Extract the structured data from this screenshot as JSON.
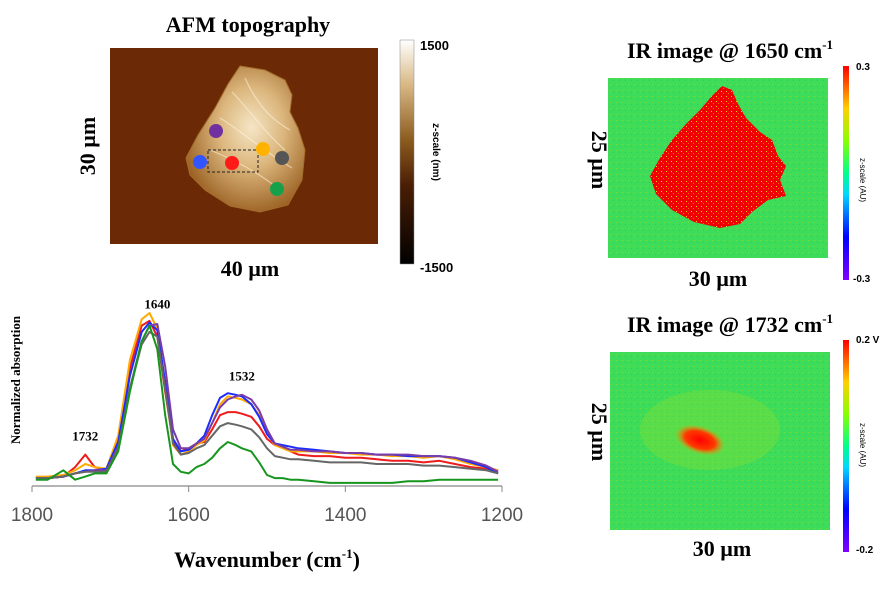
{
  "afm_panel": {
    "title": "AFM topography",
    "width_label": "40 µm",
    "height_label": "30 µm",
    "colorbar": {
      "max_label": "1500",
      "min_label": "-1500",
      "axis_label": "z-scale (nm)"
    },
    "colors": {
      "background": "#6b2a05",
      "flake": "#b8843e",
      "flake_light": "#f2e2c0"
    },
    "markers": [
      {
        "name": "purple",
        "color": "#7030a0"
      },
      {
        "name": "blue",
        "color": "#3355ff"
      },
      {
        "name": "red",
        "color": "#ff1a1a"
      },
      {
        "name": "orange",
        "color": "#ffb300"
      },
      {
        "name": "gray",
        "color": "#555555"
      },
      {
        "name": "green",
        "color": "#16a04a"
      }
    ]
  },
  "ir_panels": [
    {
      "title_prefix": "IR image @ 1650 cm",
      "title_sup": "-1",
      "width_label": "30 µm",
      "height_label": "25 µm",
      "colorbar": {
        "max_label": "0.3",
        "min_label": "-0.3",
        "axis_label": "z-scale (AU)"
      }
    },
    {
      "title_prefix": "IR image @ 1732 cm",
      "title_sup": "-1",
      "width_label": "30 µm",
      "height_label": "25 µm",
      "colorbar": {
        "max_label": "0.2 V",
        "min_label": "-0.2",
        "axis_label": "z-scale (AU)"
      }
    }
  ],
  "chart_data": {
    "type": "line",
    "title": "",
    "xlabel_main": "Wavenumber (cm",
    "xlabel_sup": "-1",
    "xlabel_close": ")",
    "ylabel": "Normalized  absorption",
    "xlim": [
      1800,
      1200
    ],
    "ylim": [
      0,
      1.1
    ],
    "xticks": [
      1800,
      1600,
      1400,
      1200
    ],
    "x": [
      1795,
      1780,
      1760,
      1745,
      1732,
      1720,
      1705,
      1690,
      1675,
      1660,
      1650,
      1640,
      1630,
      1620,
      1610,
      1600,
      1590,
      1580,
      1570,
      1560,
      1550,
      1540,
      1532,
      1520,
      1510,
      1500,
      1490,
      1480,
      1470,
      1460,
      1440,
      1420,
      1400,
      1380,
      1360,
      1340,
      1320,
      1300,
      1280,
      1260,
      1240,
      1220,
      1205
    ],
    "series": [
      {
        "name": "red",
        "color": "#ee1c1c",
        "values": [
          0.05,
          0.05,
          0.06,
          0.12,
          0.2,
          0.12,
          0.1,
          0.3,
          0.75,
          1.02,
          1.05,
          0.95,
          0.6,
          0.28,
          0.22,
          0.24,
          0.27,
          0.28,
          0.36,
          0.45,
          0.47,
          0.47,
          0.46,
          0.44,
          0.38,
          0.3,
          0.26,
          0.25,
          0.22,
          0.2,
          0.19,
          0.19,
          0.18,
          0.18,
          0.17,
          0.16,
          0.16,
          0.15,
          0.16,
          0.14,
          0.12,
          0.11,
          0.1
        ]
      },
      {
        "name": "orange",
        "color": "#ffaa00",
        "values": [
          0.06,
          0.06,
          0.07,
          0.1,
          0.14,
          0.12,
          0.11,
          0.32,
          0.8,
          1.06,
          1.1,
          1.0,
          0.63,
          0.26,
          0.2,
          0.22,
          0.26,
          0.29,
          0.4,
          0.52,
          0.57,
          0.56,
          0.55,
          0.52,
          0.45,
          0.34,
          0.26,
          0.24,
          0.22,
          0.22,
          0.22,
          0.21,
          0.21,
          0.2,
          0.2,
          0.19,
          0.19,
          0.18,
          0.19,
          0.17,
          0.14,
          0.12,
          0.1
        ]
      },
      {
        "name": "blue",
        "color": "#1a2cff",
        "values": [
          0.05,
          0.05,
          0.06,
          0.08,
          0.1,
          0.1,
          0.11,
          0.28,
          0.7,
          0.98,
          1.04,
          0.99,
          0.66,
          0.3,
          0.22,
          0.23,
          0.27,
          0.32,
          0.45,
          0.56,
          0.59,
          0.58,
          0.57,
          0.52,
          0.44,
          0.33,
          0.27,
          0.26,
          0.25,
          0.24,
          0.23,
          0.22,
          0.21,
          0.21,
          0.2,
          0.2,
          0.19,
          0.19,
          0.19,
          0.18,
          0.15,
          0.12,
          0.08
        ]
      },
      {
        "name": "purple",
        "color": "#7a3ca8",
        "values": [
          0.05,
          0.05,
          0.06,
          0.08,
          0.09,
          0.1,
          0.1,
          0.25,
          0.62,
          0.92,
          1.02,
          1.03,
          0.76,
          0.36,
          0.24,
          0.24,
          0.27,
          0.3,
          0.4,
          0.5,
          0.55,
          0.57,
          0.58,
          0.55,
          0.48,
          0.36,
          0.27,
          0.25,
          0.23,
          0.23,
          0.22,
          0.22,
          0.21,
          0.21,
          0.2,
          0.2,
          0.2,
          0.19,
          0.19,
          0.18,
          0.16,
          0.13,
          0.09
        ]
      },
      {
        "name": "gray",
        "color": "#666666",
        "values": [
          0.05,
          0.05,
          0.06,
          0.08,
          0.09,
          0.09,
          0.09,
          0.24,
          0.62,
          0.9,
          0.98,
          0.95,
          0.62,
          0.27,
          0.2,
          0.21,
          0.24,
          0.26,
          0.32,
          0.38,
          0.4,
          0.39,
          0.38,
          0.36,
          0.31,
          0.24,
          0.19,
          0.18,
          0.17,
          0.17,
          0.16,
          0.15,
          0.15,
          0.15,
          0.14,
          0.14,
          0.14,
          0.13,
          0.13,
          0.12,
          0.11,
          0.1,
          0.08
        ]
      },
      {
        "name": "green",
        "color": "#17961e",
        "values": [
          0.04,
          0.04,
          0.1,
          0.04,
          0.06,
          0.08,
          0.08,
          0.22,
          0.6,
          0.92,
          1.02,
          0.87,
          0.45,
          0.14,
          0.09,
          0.08,
          0.12,
          0.14,
          0.18,
          0.24,
          0.28,
          0.26,
          0.24,
          0.22,
          0.15,
          0.07,
          0.05,
          0.05,
          0.04,
          0.04,
          0.03,
          0.02,
          0.02,
          0.02,
          0.02,
          0.02,
          0.03,
          0.03,
          0.04,
          0.04,
          0.04,
          0.04,
          0.04
        ]
      }
    ],
    "annotations": [
      {
        "text": "1640",
        "x": 1640,
        "y": 1.13
      },
      {
        "text": "1532",
        "x": 1532,
        "y": 0.67
      },
      {
        "text": "1732",
        "x": 1732,
        "y": 0.29
      }
    ]
  }
}
